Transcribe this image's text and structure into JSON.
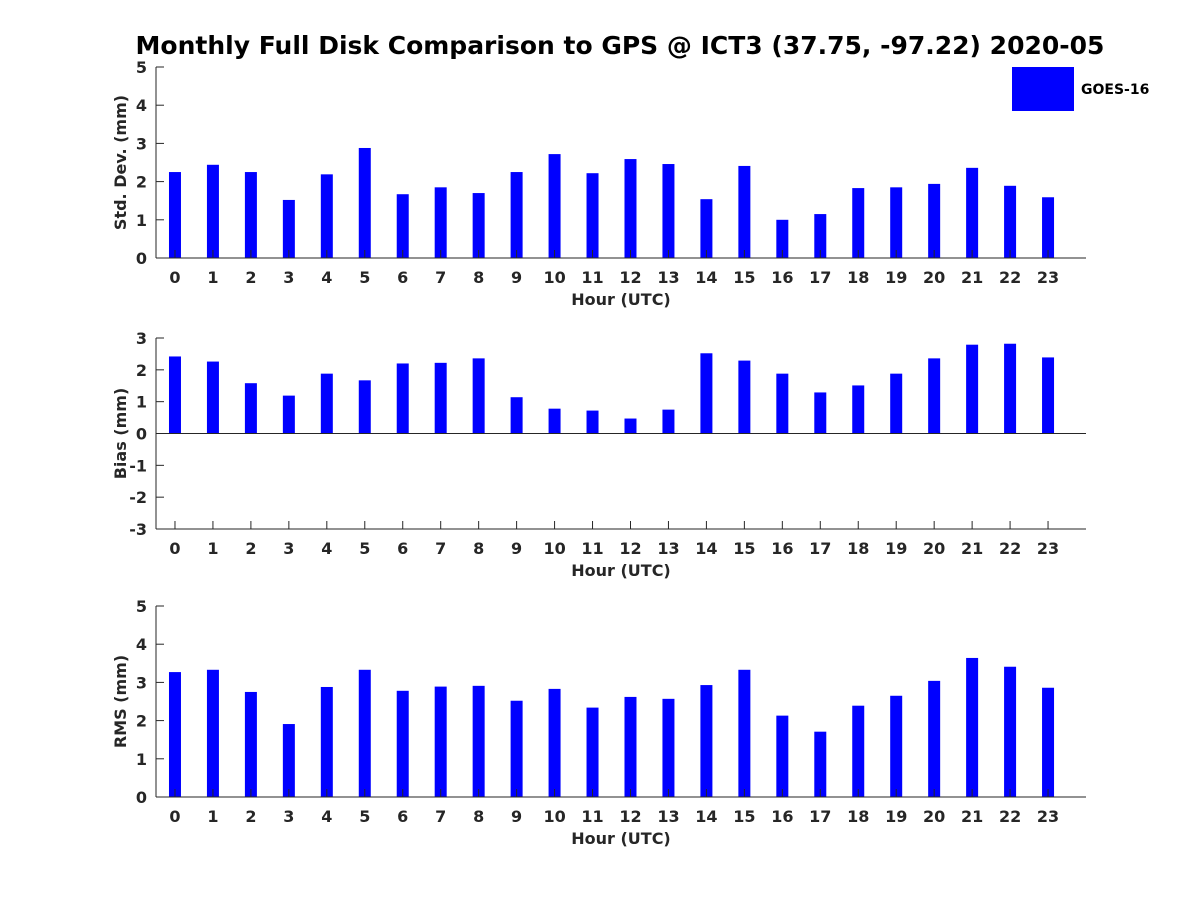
{
  "title": "Monthly Full Disk Comparison to GPS @ ICT3 (37.75, -97.22) 2020-05",
  "legend": {
    "label": "GOES-16",
    "color": "#0000ff",
    "placement": "top-right"
  },
  "chart_data": [
    {
      "type": "bar",
      "xlabel": "Hour (UTC)",
      "ylabel": "Std. Dev. (mm)",
      "ylim": [
        0,
        5
      ],
      "yticks": [
        0,
        1,
        2,
        3,
        4,
        5
      ],
      "categories": [
        "0",
        "1",
        "2",
        "3",
        "4",
        "5",
        "6",
        "7",
        "8",
        "9",
        "10",
        "11",
        "12",
        "13",
        "14",
        "15",
        "16",
        "17",
        "18",
        "19",
        "20",
        "21",
        "22",
        "23"
      ],
      "series": [
        {
          "name": "GOES-16",
          "values": [
            2.25,
            2.44,
            2.25,
            1.52,
            2.19,
            2.88,
            1.67,
            1.85,
            1.7,
            2.25,
            2.72,
            2.22,
            2.59,
            2.46,
            1.54,
            2.41,
            1.0,
            1.15,
            1.83,
            1.85,
            1.94,
            2.36,
            1.89,
            1.59
          ]
        }
      ]
    },
    {
      "type": "bar",
      "xlabel": "Hour (UTC)",
      "ylabel": "Bias (mm)",
      "ylim": [
        -3,
        3
      ],
      "yticks": [
        -3,
        -2,
        -1,
        0,
        1,
        2,
        3
      ],
      "categories": [
        "0",
        "1",
        "2",
        "3",
        "4",
        "5",
        "6",
        "7",
        "8",
        "9",
        "10",
        "11",
        "12",
        "13",
        "14",
        "15",
        "16",
        "17",
        "18",
        "19",
        "20",
        "21",
        "22",
        "23"
      ],
      "series": [
        {
          "name": "GOES-16",
          "values": [
            2.42,
            2.26,
            1.58,
            1.19,
            1.88,
            1.67,
            2.2,
            2.22,
            2.36,
            1.14,
            0.78,
            0.72,
            0.47,
            0.75,
            2.52,
            2.29,
            1.88,
            1.29,
            1.51,
            1.88,
            2.36,
            2.79,
            2.82,
            2.39
          ]
        }
      ]
    },
    {
      "type": "bar",
      "xlabel": "Hour (UTC)",
      "ylabel": "RMS (mm)",
      "ylim": [
        0,
        5
      ],
      "yticks": [
        0,
        1,
        2,
        3,
        4,
        5
      ],
      "categories": [
        "0",
        "1",
        "2",
        "3",
        "4",
        "5",
        "6",
        "7",
        "8",
        "9",
        "10",
        "11",
        "12",
        "13",
        "14",
        "15",
        "16",
        "17",
        "18",
        "19",
        "20",
        "21",
        "22",
        "23"
      ],
      "series": [
        {
          "name": "GOES-16",
          "values": [
            3.27,
            3.33,
            2.75,
            1.91,
            2.88,
            3.33,
            2.78,
            2.89,
            2.91,
            2.52,
            2.83,
            2.34,
            2.62,
            2.57,
            2.93,
            3.33,
            2.13,
            1.71,
            2.39,
            2.65,
            3.04,
            3.64,
            3.41,
            2.86
          ]
        }
      ]
    }
  ]
}
